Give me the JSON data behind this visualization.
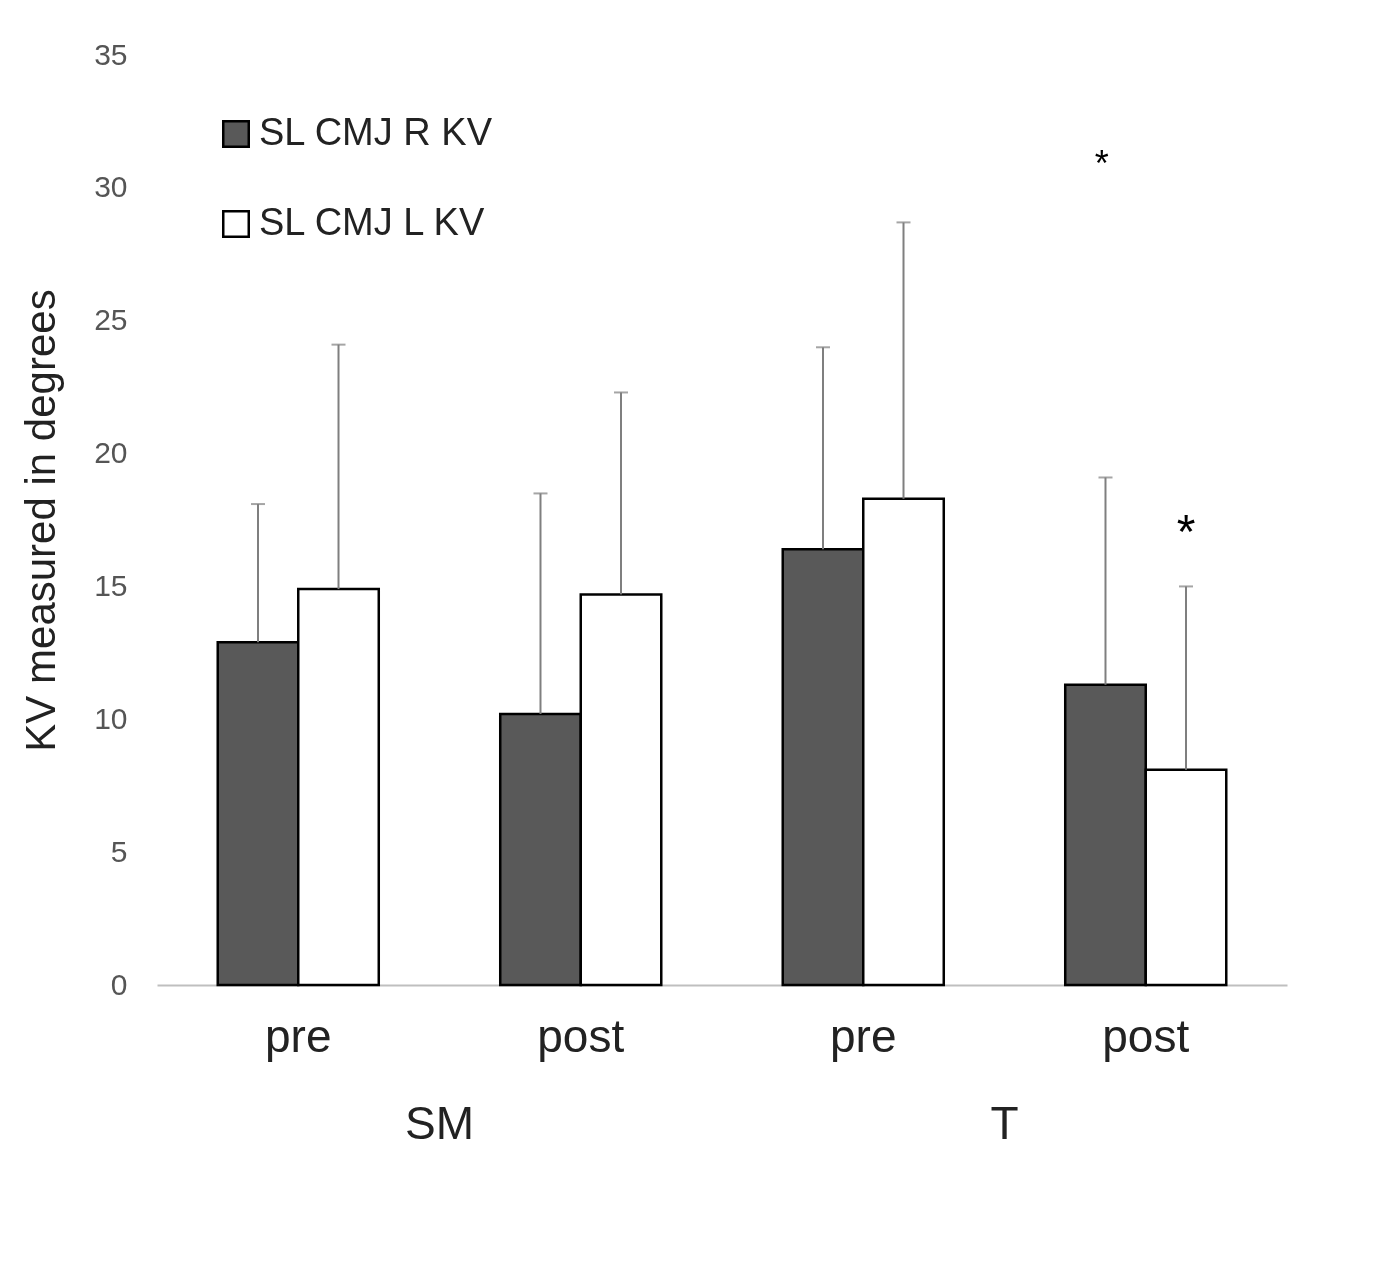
{
  "chart_data": {
    "type": "bar",
    "ylabel": "KV measured in degrees",
    "categories": [
      "pre",
      "post",
      "pre",
      "post"
    ],
    "series": [
      {
        "name": "SL CMJ R KV",
        "color": "#595959",
        "values": [
          12.9,
          10.2,
          16.4,
          11.3
        ],
        "errors": [
          [
            12.9,
            18.1
          ],
          [
            10.2,
            18.5
          ],
          [
            16.4,
            24.0
          ],
          [
            11.3,
            19.1
          ]
        ]
      },
      {
        "name": "SL CMJ L KV",
        "color": "#ffffff",
        "values": [
          14.9,
          14.7,
          18.3,
          8.1
        ],
        "errors": [
          [
            14.9,
            24.1
          ],
          [
            14.7,
            22.3
          ],
          [
            18.3,
            28.7
          ],
          [
            8.1,
            15.0
          ]
        ]
      }
    ],
    "ylim": [
      0,
      35
    ],
    "yticks": [
      0,
      5,
      10,
      15,
      20,
      25,
      30,
      35
    ],
    "grid": false,
    "legend": "top left",
    "annotations": [
      "SM",
      "T",
      "*",
      "*"
    ]
  }
}
